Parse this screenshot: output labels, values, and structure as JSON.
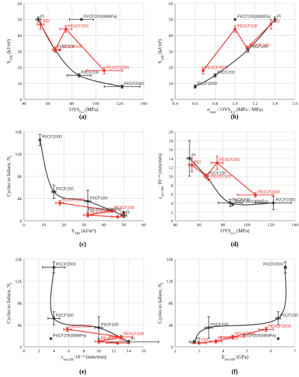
{
  "colors": {
    "black_series": "#3a3a3a",
    "red_series": "#e8302a",
    "grid": "#d6d6d6",
    "axis": "#8a8a8a"
  },
  "chart_data": [
    {
      "id": "a",
      "type": "scatter",
      "caption": "(a)",
      "xlabel": "OYS0.2 (MPa)",
      "ylabel": "S100 (kJ/m³)",
      "xlim": [
        40,
        140
      ],
      "ylim": [
        0,
        60
      ],
      "xticks": [
        40,
        60,
        80,
        100,
        120,
        140
      ],
      "yticks": [
        0,
        10,
        20,
        30,
        40,
        50,
        60
      ],
      "xtick_labels": [
        "40",
        "60",
        "80",
        "100",
        "120",
        "140"
      ],
      "ytick_labels": [
        "0",
        "10",
        "20",
        "30",
        "40",
        "50",
        "60"
      ],
      "series": [
        {
          "color": "black",
          "connected": true,
          "points": [
            {
              "x": 52,
              "y": 50,
              "label": "PI",
              "xerr": 2,
              "yerr": 1.5
            },
            {
              "x": 66,
              "y": 31,
              "label": "PI/CF100",
              "xerr": 2,
              "yerr": 1.5
            },
            {
              "x": 86,
              "y": 15,
              "label": "PI/CF200",
              "xerr": 10,
              "yerr": 1
            },
            {
              "x": 122,
              "y": 8,
              "label": "PI/CF2000",
              "xerr": 15,
              "yerr": 1
            }
          ]
        },
        {
          "color": "red",
          "connected": true,
          "points": [
            {
              "x": 54,
              "y": 47,
              "label": "PEI",
              "xerr": 3,
              "yerr": 3
            },
            {
              "x": 66,
              "y": 31,
              "label": "",
              "xerr": 2,
              "yerr": 1.5
            },
            {
              "x": 75,
              "y": 44,
              "label": "PEI/CF200",
              "xerr": 5,
              "yerr": 2
            },
            {
              "x": 107,
              "y": 18,
              "label": "PEI/CF2000",
              "xerr": 15,
              "yerr": 2
            }
          ]
        },
        {
          "color": "black",
          "connected": false,
          "points": [
            {
              "x": 88,
              "y": 50,
              "label": "PI/CF200(88MPa)",
              "xerr": 10,
              "yerr": 0
            }
          ]
        },
        {
          "color": "red",
          "connected": false,
          "points": [
            {
              "x": 70,
              "y": 31,
              "label": "PEI/CF100",
              "xerr": 0,
              "yerr": 0
            }
          ]
        }
      ]
    },
    {
      "id": "b",
      "type": "scatter",
      "caption": "(b)",
      "xlabel": "σmax / OYS0.2 (MPa / MPa)",
      "ylabel": "S100 (kJ/m³)",
      "xlim": [
        0.4,
        1.6
      ],
      "ylim": [
        0,
        60
      ],
      "xticks": [
        0.4,
        0.6,
        0.8,
        1.0,
        1.2,
        1.4,
        1.6
      ],
      "yticks": [
        0,
        10,
        20,
        30,
        40,
        50,
        60
      ],
      "xtick_labels": [
        "0.4",
        "0.6",
        "0.8",
        "1.0",
        "1.2",
        "1.4",
        "1.6"
      ],
      "ytick_labels": [
        "0",
        "10",
        "20",
        "30",
        "40",
        "50",
        "60"
      ],
      "series": [
        {
          "color": "black",
          "connected": true,
          "points": [
            {
              "x": 0.6,
              "y": 8,
              "label": "PI/CF2000",
              "xerr": 0,
              "yerr": 1
            },
            {
              "x": 0.8,
              "y": 15,
              "label": "PI/CF200",
              "xerr": 0,
              "yerr": 1
            },
            {
              "x": 1.13,
              "y": 31,
              "label": "PI/CF100",
              "xerr": 0,
              "yerr": 1.5
            },
            {
              "x": 1.4,
              "y": 50,
              "label": "PI",
              "xerr": 0,
              "yerr": 1.5
            }
          ]
        },
        {
          "color": "red",
          "connected": true,
          "points": [
            {
              "x": 0.68,
              "y": 18,
              "label": "PEI/CF2000",
              "xerr": 0,
              "yerr": 2
            },
            {
              "x": 1.0,
              "y": 44,
              "label": "PEI/CF200",
              "xerr": 0,
              "yerr": 2
            },
            {
              "x": 1.12,
              "y": 32,
              "label": "PEI/CF100",
              "xerr": 0,
              "yerr": 1.5
            },
            {
              "x": 1.36,
              "y": 47,
              "label": "PEI",
              "xerr": 0,
              "yerr": 3
            }
          ]
        },
        {
          "color": "black",
          "connected": false,
          "points": [
            {
              "x": 1.0,
              "y": 50,
              "label": "PI/CF200(88MPa)",
              "xerr": 0,
              "yerr": 0
            }
          ]
        }
      ]
    },
    {
      "id": "c",
      "type": "scatter",
      "caption": "(c)",
      "xlabel": "S100 (kJ/m³)",
      "ylabel": "Cycles to failure, Nf",
      "xlim": [
        0,
        60
      ],
      "ylim": [
        0,
        16000
      ],
      "xticks": [
        0,
        10,
        20,
        30,
        40,
        50,
        60
      ],
      "yticks": [
        0,
        4000,
        8000,
        12000,
        16000
      ],
      "xtick_labels": [
        "0",
        "10",
        "20",
        "30",
        "40",
        "50",
        "60"
      ],
      "ytick_labels": [
        "0",
        "4k",
        "8k",
        "12k",
        "16k"
      ],
      "series": [
        {
          "color": "black",
          "connected": true,
          "points": [
            {
              "x": 8,
              "y": 14500,
              "label": "PI/CF2000",
              "xerr": 0,
              "yerr": 1000
            },
            {
              "x": 15,
              "y": 5200,
              "label": "PI/CF200",
              "xerr": 1,
              "yerr": 1200
            },
            {
              "x": 32,
              "y": 3500,
              "label": "PI/CF100",
              "xerr": 1.5,
              "yerr": 2000
            },
            {
              "x": 50,
              "y": 900,
              "label": "PI",
              "xerr": 1.5,
              "yerr": 300
            }
          ]
        },
        {
          "color": "red",
          "connected": true,
          "points": [
            {
              "x": 18,
              "y": 3200,
              "label": "PEI/CF2000",
              "xerr": 2,
              "yerr": 400
            },
            {
              "x": 44,
              "y": 1800,
              "label": "PEI/CF200",
              "xerr": 2,
              "yerr": 300
            },
            {
              "x": 32,
              "y": 1000,
              "label": "PEI/CF100",
              "xerr": 2,
              "yerr": 300
            },
            {
              "x": 47,
              "y": 700,
              "label": "PEI",
              "xerr": 3,
              "yerr": 200
            }
          ]
        },
        {
          "color": "black",
          "connected": false,
          "points": [
            {
              "x": 50,
              "y": 1500,
              "label": "PI/CF200(88MPa)",
              "xerr": 0,
              "yerr": 0
            }
          ]
        }
      ]
    },
    {
      "id": "d",
      "type": "scatter",
      "caption": "(d)",
      "xlabel": "OYS0.2 (MPa)",
      "ylabel": "εsec100·10⁻⁴ (mm/mm)",
      "xlim": [
        40,
        140
      ],
      "ylim": [
        0,
        20
      ],
      "xticks": [
        40,
        60,
        80,
        100,
        120,
        140
      ],
      "yticks": [
        0,
        2,
        4,
        6,
        8,
        10,
        12,
        14,
        16,
        18,
        20
      ],
      "xtick_labels": [
        "40",
        "60",
        "80",
        "100",
        "120",
        "140"
      ],
      "ytick_labels": [
        "0",
        "2",
        "4",
        "6",
        "8",
        "10",
        "12",
        "14",
        "16",
        "18",
        "20"
      ],
      "series": [
        {
          "color": "black",
          "connected": true,
          "points": [
            {
              "x": 52,
              "y": 14,
              "label": "PI",
              "xerr": 2,
              "yerr": 4
            },
            {
              "x": 66,
              "y": 10,
              "label": "PI/CF100",
              "xerr": 2,
              "yerr": 0.5
            },
            {
              "x": 86,
              "y": 4,
              "label": "PI/CF200",
              "xerr": 10,
              "yerr": 0.8
            },
            {
              "x": 122,
              "y": 4,
              "label": "PI/CF2000",
              "xerr": 15,
              "yerr": 1.5
            }
          ]
        },
        {
          "color": "red",
          "connected": true,
          "points": [
            {
              "x": 54,
              "y": 12.5,
              "label": "PEI",
              "xerr": 3,
              "yerr": 1.5
            },
            {
              "x": 66,
              "y": 10,
              "label": "",
              "xerr": 2,
              "yerr": 0.5
            },
            {
              "x": 75,
              "y": 13,
              "label": "PEI/CF200",
              "xerr": 5,
              "yerr": 1.5
            },
            {
              "x": 107,
              "y": 5.8,
              "label": "PEI/CF2000",
              "xerr": 15,
              "yerr": 0.5
            }
          ]
        },
        {
          "color": "black",
          "connected": false,
          "points": [
            {
              "x": 88,
              "y": 3.6,
              "label": "PI/CF200(88MPa)",
              "xerr": 0,
              "yerr": 0
            }
          ]
        },
        {
          "color": "red",
          "connected": false,
          "points": [
            {
              "x": 68,
              "y": 9.2,
              "label": "PEI/CF100",
              "xerr": 0,
              "yerr": 0
            }
          ]
        }
      ]
    },
    {
      "id": "e",
      "type": "scatter",
      "caption": "(e)",
      "xlabel": "εsec100·10⁻⁴ (mm/mm)",
      "ylabel": "Cycles to failure, Nf",
      "xlim": [
        0,
        16
      ],
      "ylim": [
        0,
        16000
      ],
      "xticks": [
        0,
        2,
        4,
        6,
        8,
        10,
        12,
        14,
        16
      ],
      "yticks": [
        0,
        4000,
        8000,
        12000,
        16000
      ],
      "xtick_labels": [
        "0",
        "2",
        "4",
        "6",
        "8",
        "10",
        "12",
        "14",
        "16"
      ],
      "ytick_labels": [
        "0",
        "4k",
        "8k",
        "12k",
        "16k"
      ],
      "series": [
        {
          "color": "black",
          "connected": true,
          "points": [
            {
              "x": 4,
              "y": 14500,
              "label": "PI/CF2000",
              "xerr": 1.5,
              "yerr": 1000
            },
            {
              "x": 4,
              "y": 5200,
              "label": "PI/CF200",
              "xerr": 0.8,
              "yerr": 1200
            },
            {
              "x": 10,
              "y": 3500,
              "label": "PI/CF100",
              "xerr": 0.5,
              "yerr": 2000
            },
            {
              "x": 14,
              "y": 900,
              "label": "PI",
              "xerr": 4,
              "yerr": 300
            }
          ]
        },
        {
          "color": "red",
          "connected": true,
          "points": [
            {
              "x": 5.8,
              "y": 3200,
              "label": "PEI/CF2000",
              "xerr": 0.5,
              "yerr": 400
            },
            {
              "x": 13,
              "y": 1800,
              "label": "PEI/CF200",
              "xerr": 1.5,
              "yerr": 300
            },
            {
              "x": 10,
              "y": 1000,
              "label": "PEI/CF100",
              "xerr": 0.5,
              "yerr": 300
            },
            {
              "x": 12.5,
              "y": 700,
              "label": "PEI",
              "xerr": 1.5,
              "yerr": 200
            }
          ]
        },
        {
          "color": "black",
          "connected": false,
          "points": [
            {
              "x": 3.6,
              "y": 1500,
              "label": "PI/CF200(88MPa)",
              "xerr": 0,
              "yerr": 0
            }
          ]
        }
      ]
    },
    {
      "id": "f",
      "type": "scatter",
      "caption": "(f)",
      "xlabel": "Esec100 (GPa)",
      "ylabel": "Cycles to failure, Nf",
      "xlim": [
        2,
        7
      ],
      "ylim": [
        0,
        16000
      ],
      "xticks": [
        2,
        3,
        4,
        5,
        6,
        7
      ],
      "yticks": [
        0,
        4000,
        8000,
        12000,
        16000
      ],
      "xtick_labels": [
        "2",
        "3",
        "4",
        "5",
        "6",
        "7"
      ],
      "ytick_labels": [
        "0",
        "4k",
        "8k",
        "12k",
        "16k"
      ],
      "series": [
        {
          "color": "black",
          "connected": true,
          "points": [
            {
              "x": 2.8,
              "y": 900,
              "label": "PI",
              "xerr": 0.2,
              "yerr": 300
            },
            {
              "x": 3.4,
              "y": 3500,
              "label": "PI/CF100",
              "xerr": 0.15,
              "yerr": 2000
            },
            {
              "x": 6.3,
              "y": 5200,
              "label": "PI/CF200",
              "xerr": 0.1,
              "yerr": 1200
            },
            {
              "x": 6.6,
              "y": 14500,
              "label": "PI/CF2000",
              "xerr": 0.05,
              "yerr": 1000
            }
          ]
        },
        {
          "color": "red",
          "connected": true,
          "points": [
            {
              "x": 3,
              "y": 700,
              "label": "PEI",
              "xerr": 0.3,
              "yerr": 200
            },
            {
              "x": 3.7,
              "y": 1000,
              "label": "PEI/CF100",
              "xerr": 0.25,
              "yerr": 300
            },
            {
              "x": 4.4,
              "y": 1800,
              "label": "PEI/CF200",
              "xerr": 0.5,
              "yerr": 300
            },
            {
              "x": 5.8,
              "y": 3200,
              "label": "PEI/CF2000",
              "xerr": 0.3,
              "yerr": 400
            }
          ]
        },
        {
          "color": "black",
          "connected": false,
          "points": [
            {
              "x": 6.3,
              "y": 1500,
              "label": "PI/CF200(88MPa)",
              "xerr": 0,
              "yerr": 0
            }
          ]
        }
      ]
    }
  ]
}
